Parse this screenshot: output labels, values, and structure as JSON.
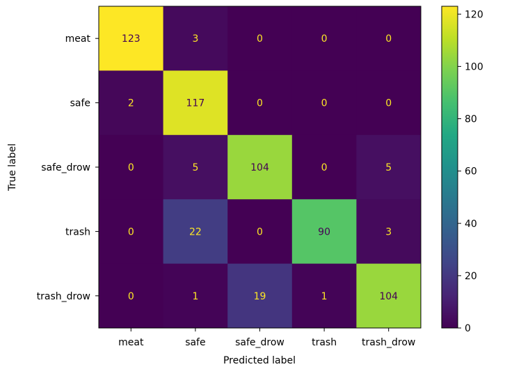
{
  "chart_data": {
    "type": "heatmap",
    "title": "",
    "xlabel": "Predicted label",
    "ylabel": "True label",
    "x_categories": [
      "meat",
      "safe",
      "safe_drow",
      "trash",
      "trash_drow"
    ],
    "y_categories": [
      "meat",
      "safe",
      "safe_drow",
      "trash",
      "trash_drow"
    ],
    "values": [
      [
        123,
        3,
        0,
        0,
        0
      ],
      [
        2,
        117,
        0,
        0,
        0
      ],
      [
        0,
        5,
        104,
        0,
        5
      ],
      [
        0,
        22,
        0,
        90,
        3
      ],
      [
        0,
        1,
        19,
        1,
        104
      ]
    ],
    "colormap": "viridis",
    "vmin": 0,
    "vmax": 123,
    "colorbar_ticks": [
      0,
      20,
      40,
      60,
      80,
      100,
      120
    ],
    "colorbar_tick_labels": [
      "0",
      "20",
      "40",
      "60",
      "80",
      "100",
      "120"
    ],
    "text_color_light": "#fde725",
    "text_color_dark": "#440154",
    "grid": false
  }
}
